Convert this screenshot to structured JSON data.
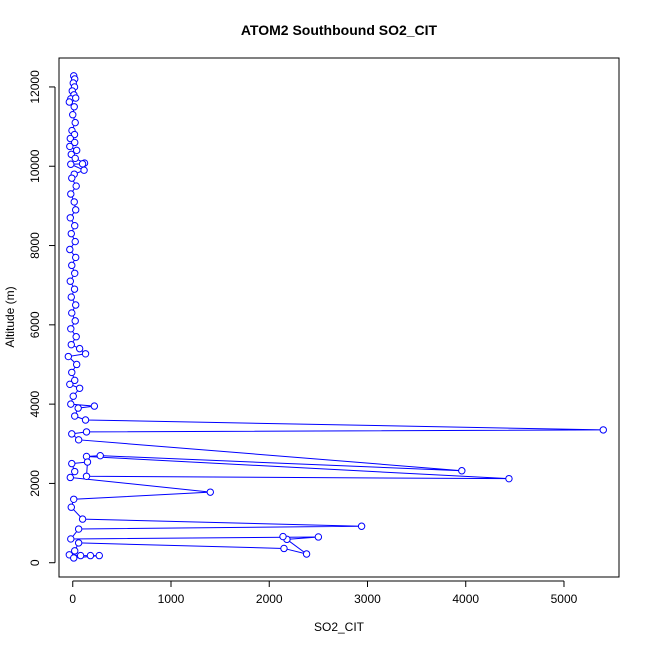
{
  "chart_data": {
    "type": "line",
    "title": "ATOM2 Southbound SO2_CIT",
    "xlabel": "SO2_CIT",
    "ylabel": "Altitude (m)",
    "xlim": [
      -140,
      5560
    ],
    "ylim": [
      -360,
      12730
    ],
    "x_ticks": [
      0,
      1000,
      2000,
      3000,
      4000,
      5000
    ],
    "y_ticks": [
      0,
      2000,
      4000,
      6000,
      8000,
      10000,
      12000
    ],
    "x_tick_labels": [
      "0",
      "1000",
      "2000",
      "3000",
      "4000",
      "5000"
    ],
    "y_tick_labels": [
      "0",
      "2000",
      "4000",
      "6000",
      "8000",
      "10000",
      "12000"
    ],
    "grid": false,
    "series": [
      {
        "color": "#0000ff",
        "marker": "open-circle",
        "points": [
          [
            10,
            12280
          ],
          [
            20,
            12200
          ],
          [
            5,
            12100
          ],
          [
            18,
            12000
          ],
          [
            -5,
            11900
          ],
          [
            12,
            11800
          ],
          [
            -20,
            11700
          ],
          [
            30,
            11720
          ],
          [
            -35,
            11620
          ],
          [
            15,
            11500
          ],
          [
            0,
            11300
          ],
          [
            25,
            11100
          ],
          [
            -8,
            10900
          ],
          [
            18,
            10800
          ],
          [
            -25,
            10700
          ],
          [
            20,
            10600
          ],
          [
            -30,
            10500
          ],
          [
            40,
            10400
          ],
          [
            -15,
            10300
          ],
          [
            25,
            10200
          ],
          [
            120,
            10080
          ],
          [
            100,
            10060
          ],
          [
            -20,
            10050
          ],
          [
            115,
            9900
          ],
          [
            15,
            9800
          ],
          [
            -10,
            9700
          ],
          [
            35,
            9500
          ],
          [
            -20,
            9300
          ],
          [
            15,
            9100
          ],
          [
            30,
            8900
          ],
          [
            -25,
            8700
          ],
          [
            20,
            8500
          ],
          [
            -15,
            8300
          ],
          [
            25,
            8100
          ],
          [
            -30,
            7900
          ],
          [
            30,
            7700
          ],
          [
            -10,
            7500
          ],
          [
            20,
            7300
          ],
          [
            -25,
            7100
          ],
          [
            18,
            6900
          ],
          [
            -15,
            6700
          ],
          [
            30,
            6500
          ],
          [
            -10,
            6300
          ],
          [
            25,
            6100
          ],
          [
            -20,
            5900
          ],
          [
            35,
            5700
          ],
          [
            -15,
            5500
          ],
          [
            70,
            5400
          ],
          [
            130,
            5270
          ],
          [
            -45,
            5200
          ],
          [
            40,
            5000
          ],
          [
            -10,
            4800
          ],
          [
            20,
            4600
          ],
          [
            -30,
            4500
          ],
          [
            70,
            4400
          ],
          [
            5,
            4200
          ],
          [
            -20,
            4000
          ],
          [
            220,
            3950
          ],
          [
            55,
            3900
          ],
          [
            20,
            3700
          ],
          [
            130,
            3600
          ],
          [
            5400,
            3350
          ],
          [
            140,
            3300
          ],
          [
            -10,
            3250
          ],
          [
            60,
            3100
          ],
          [
            3960,
            2320
          ],
          [
            280,
            2700
          ],
          [
            140,
            2680
          ],
          [
            4440,
            2120
          ],
          [
            140,
            2180
          ],
          [
            150,
            2540
          ],
          [
            -10,
            2500
          ],
          [
            20,
            2300
          ],
          [
            -25,
            2150
          ],
          [
            1400,
            1780
          ],
          [
            10,
            1600
          ],
          [
            -15,
            1400
          ],
          [
            100,
            1100
          ],
          [
            2940,
            920
          ],
          [
            60,
            850
          ],
          [
            -20,
            600
          ],
          [
            2500,
            650
          ],
          [
            2180,
            590
          ],
          [
            2140,
            660
          ],
          [
            2380,
            220
          ],
          [
            2150,
            360
          ],
          [
            60,
            500
          ],
          [
            20,
            300
          ],
          [
            -35,
            200
          ],
          [
            80,
            180
          ],
          [
            180,
            180
          ],
          [
            270,
            180
          ],
          [
            10,
            120
          ]
        ]
      }
    ]
  }
}
